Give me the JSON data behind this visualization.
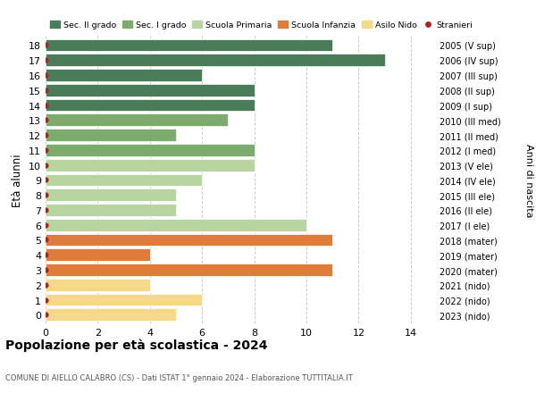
{
  "ages": [
    18,
    17,
    16,
    15,
    14,
    13,
    12,
    11,
    10,
    9,
    8,
    7,
    6,
    5,
    4,
    3,
    2,
    1,
    0
  ],
  "right_labels": [
    "2005 (V sup)",
    "2006 (IV sup)",
    "2007 (III sup)",
    "2008 (II sup)",
    "2009 (I sup)",
    "2010 (III med)",
    "2011 (II med)",
    "2012 (I med)",
    "2013 (V ele)",
    "2014 (IV ele)",
    "2015 (III ele)",
    "2016 (II ele)",
    "2017 (I ele)",
    "2018 (mater)",
    "2019 (mater)",
    "2020 (mater)",
    "2021 (nido)",
    "2022 (nido)",
    "2023 (nido)"
  ],
  "values": [
    11,
    13,
    6,
    8,
    8,
    7,
    5,
    8,
    8,
    6,
    5,
    5,
    10,
    11,
    4,
    11,
    4,
    6,
    5
  ],
  "bar_colors": [
    "#4a7c59",
    "#4a7c59",
    "#4a7c59",
    "#4a7c59",
    "#4a7c59",
    "#7dab6e",
    "#7dab6e",
    "#7dab6e",
    "#b8d4a0",
    "#b8d4a0",
    "#b8d4a0",
    "#b8d4a0",
    "#b8d4a0",
    "#e07c3a",
    "#e07c3a",
    "#e07c3a",
    "#f5d88a",
    "#f5d88a",
    "#f5d88a"
  ],
  "legend_labels": [
    "Sec. II grado",
    "Sec. I grado",
    "Scuola Primaria",
    "Scuola Infanzia",
    "Asilo Nido",
    "Stranieri"
  ],
  "legend_colors": [
    "#4a7c59",
    "#7dab6e",
    "#b8d4a0",
    "#e07c3a",
    "#f5d88a",
    "#b22222"
  ],
  "dot_color": "#b22222",
  "title": "Popolazione per età scolastica - 2024",
  "subtitle": "COMUNE DI AIELLO CALABRO (CS) - Dati ISTAT 1° gennaio 2024 - Elaborazione TUTTITALIA.IT",
  "ylabel": "Età alunni",
  "right_ylabel": "Anni di nascita",
  "xlim": [
    0,
    15
  ],
  "xticks": [
    0,
    2,
    4,
    6,
    8,
    10,
    12,
    14
  ],
  "grid_color": "#cccccc"
}
